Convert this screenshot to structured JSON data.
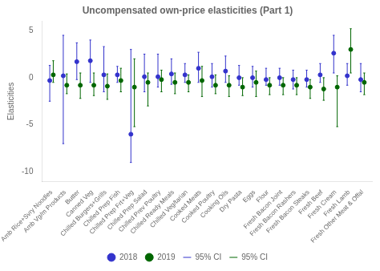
{
  "chart_data": {
    "type": "dot",
    "title": "Uncompensated own-price elasticities (Part 1)",
    "y_label": "Elasticities",
    "categories": [
      "Amb Rice+Svry Noodles",
      "Amb Vg/m Products",
      "Butter",
      "Canned Veg",
      "Chilled Burgers+Grills",
      "Chilled Prep Fish",
      "Chilled Prep Frt+Veg",
      "Chilled Prep Salad",
      "Chilled Prev Poultry",
      "Chilled Ready Meals",
      "Chilled Veg/tarian",
      "Cooked Meats",
      "Cooked Poultry",
      "Cooking Oils",
      "Dry Pasta",
      "Eggs",
      "Flour",
      "Fresh Bacon Joint",
      "Fresh Bacon Rashers",
      "Fresh Bacon Steaks",
      "Fresh Beef",
      "Fresh Cream",
      "Fresh Lamb",
      "Fresh Other Meat & Offal"
    ],
    "series": [
      {
        "name": "2018",
        "type": "point",
        "color": "#3333cc",
        "values": [
          -0.3,
          0.2,
          1.7,
          1.8,
          0.3,
          0.3,
          -6.0,
          0.1,
          0.1,
          0.4,
          0.3,
          1.0,
          0.1,
          0.7,
          0.0,
          0.0,
          -0.2,
          0.0,
          -0.2,
          -0.2,
          0.3,
          2.6,
          0.2,
          -0.2
        ]
      },
      {
        "name": "2019",
        "type": "point",
        "color": "#006600",
        "values": [
          0.3,
          -0.8,
          -0.8,
          -0.8,
          -0.9,
          -0.3,
          -1.0,
          -0.5,
          -0.2,
          -0.5,
          -0.5,
          -0.3,
          -0.8,
          -0.8,
          -1.0,
          -0.5,
          -0.8,
          -0.8,
          -0.8,
          -1.0,
          -1.2,
          -1.0,
          3.0,
          -0.5
        ]
      },
      {
        "name": "95% CI",
        "type": "errorbar",
        "color": "#3333cc",
        "low": [
          -2.5,
          -7.0,
          -0.2,
          -0.5,
          -1.5,
          -0.5,
          -9.0,
          -1.5,
          -1.0,
          -0.7,
          -0.5,
          -0.5,
          -1.0,
          -0.5,
          -0.8,
          -1.0,
          -0.8,
          -0.8,
          -1.2,
          -1.0,
          -0.5,
          0.5,
          -0.8,
          -1.5
        ],
        "high": [
          1.3,
          4.5,
          3.7,
          4.0,
          3.3,
          1.2,
          3.0,
          2.5,
          2.5,
          2.0,
          1.5,
          2.7,
          1.5,
          2.3,
          1.3,
          1.2,
          1.0,
          1.0,
          0.8,
          0.8,
          1.5,
          4.5,
          1.5,
          1.5
        ]
      },
      {
        "name": "95% CI",
        "type": "errorbar",
        "color": "#006600",
        "low": [
          -0.5,
          -1.7,
          -2.2,
          -1.9,
          -2.3,
          -1.5,
          -5.2,
          -3.0,
          -1.5,
          -1.7,
          -1.5,
          -2.0,
          -1.7,
          -2.0,
          -1.9,
          -2.0,
          -1.8,
          -1.8,
          -1.8,
          -2.2,
          -2.4,
          -5.2,
          0.5,
          -1.8
        ],
        "high": [
          1.8,
          0.4,
          0.5,
          0.5,
          0.4,
          1.0,
          2.0,
          0.5,
          0.8,
          0.5,
          0.3,
          1.2,
          0.3,
          0.2,
          0.0,
          0.7,
          0.0,
          0.0,
          0.0,
          -0.2,
          0.0,
          0.2,
          5.2,
          0.5
        ]
      }
    ],
    "ylim": [
      -11,
      6
    ],
    "yticks": [
      -10,
      -5,
      0,
      5
    ],
    "grid": false,
    "legend": "bottom"
  }
}
